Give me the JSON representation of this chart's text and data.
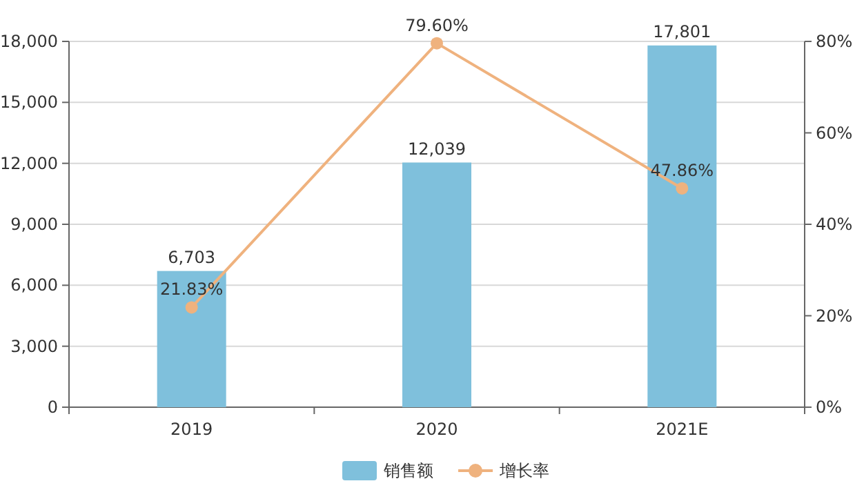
{
  "chart_data": {
    "type": "bar",
    "categories": [
      "2019",
      "2020",
      "2021E"
    ],
    "series": [
      {
        "name": "销售额",
        "color": "#7fc0dc",
        "values": [
          6703,
          12039,
          17801
        ],
        "value_labels": [
          "6,703",
          "12,039",
          "17,801"
        ]
      },
      {
        "name": "增长率",
        "type": "line",
        "axis": "y2",
        "color": "#efb27e",
        "marker": "circle",
        "values": [
          21.83,
          79.6,
          47.86
        ],
        "value_labels": [
          "21.83%",
          "79.60%",
          "47.86%"
        ]
      }
    ],
    "ylim": [
      0,
      18000
    ],
    "yticks": [
      {
        "value": 0,
        "label": "0"
      },
      {
        "value": 3000,
        "label": "3,000"
      },
      {
        "value": 6000,
        "label": "6,000"
      },
      {
        "value": 9000,
        "label": "9,000"
      },
      {
        "value": 12000,
        "label": "12,000"
      },
      {
        "value": 15000,
        "label": "15,000"
      },
      {
        "value": 18000,
        "label": "18,000"
      }
    ],
    "y2lim": [
      0,
      80
    ],
    "y2ticks": [
      {
        "value": 0,
        "label": "0%"
      },
      {
        "value": 20,
        "label": "20%"
      },
      {
        "value": 40,
        "label": "40%"
      },
      {
        "value": 60,
        "label": "60%"
      },
      {
        "value": 80,
        "label": "80%"
      }
    ],
    "grid": "y",
    "legend": "bottom"
  }
}
